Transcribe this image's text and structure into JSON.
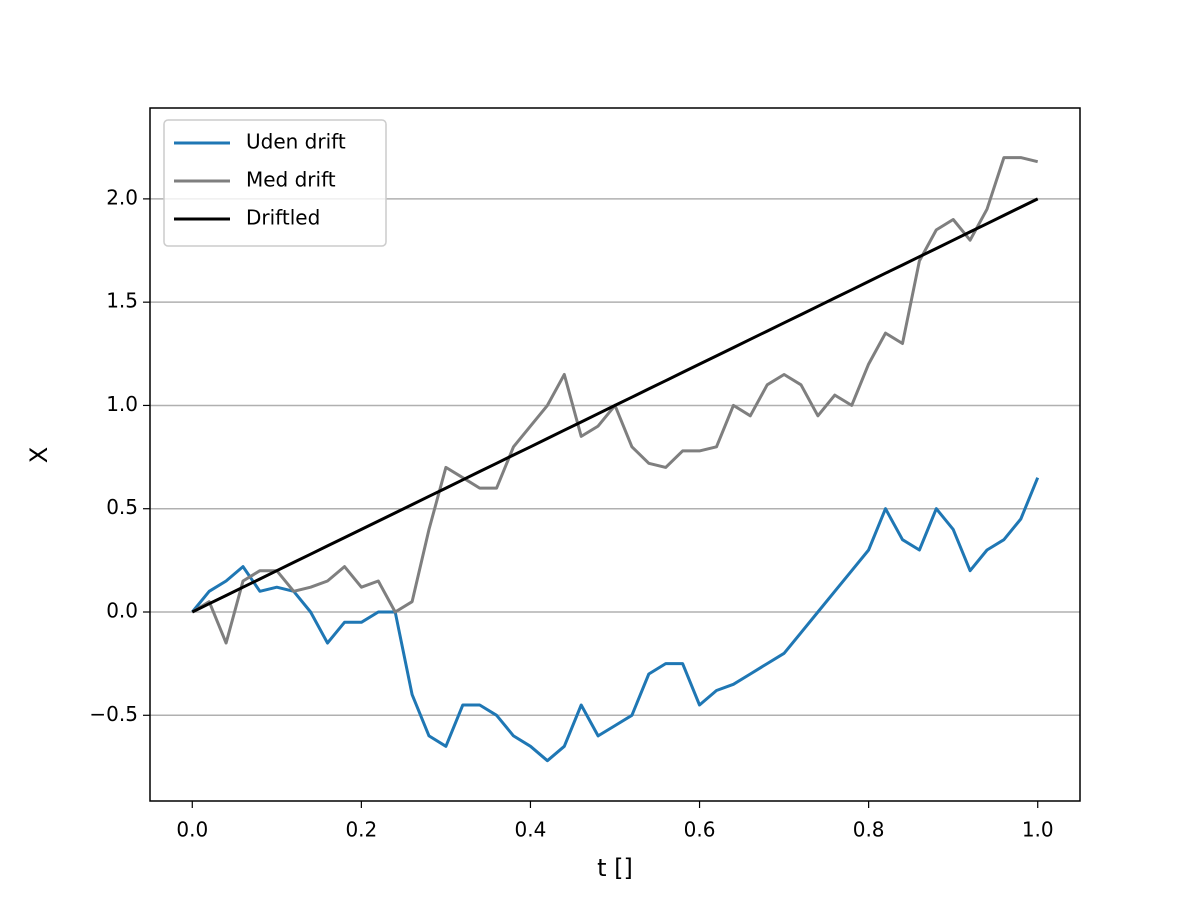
{
  "chart_data": {
    "type": "line",
    "xlabel": "t []",
    "ylabel": "X",
    "x": [
      0,
      0.02,
      0.04,
      0.06,
      0.08,
      0.1,
      0.12,
      0.14,
      0.16,
      0.18,
      0.2,
      0.22,
      0.24,
      0.26,
      0.28,
      0.3,
      0.32,
      0.34,
      0.36,
      0.38,
      0.4,
      0.42,
      0.44,
      0.46,
      0.48,
      0.5,
      0.52,
      0.54,
      0.56,
      0.58,
      0.6,
      0.62,
      0.64,
      0.66,
      0.68,
      0.7,
      0.72,
      0.74,
      0.76,
      0.78,
      0.8,
      0.82,
      0.84,
      0.86,
      0.88,
      0.9,
      0.92,
      0.94,
      0.96,
      0.98,
      1
    ],
    "series": [
      {
        "name": "Uden drift",
        "color": "#1f77b4",
        "values": [
          0,
          0.1,
          0.15,
          0.22,
          0.1,
          0.12,
          0.1,
          0,
          -0.15,
          -0.05,
          -0.05,
          0,
          0,
          -0.4,
          -0.6,
          -0.65,
          -0.45,
          -0.45,
          -0.5,
          -0.6,
          -0.65,
          -0.72,
          -0.65,
          -0.45,
          -0.6,
          -0.55,
          -0.5,
          -0.3,
          -0.25,
          -0.25,
          -0.45,
          -0.38,
          -0.35,
          -0.3,
          -0.25,
          -0.2,
          -0.1,
          0,
          0.1,
          0.2,
          0.3,
          0.5,
          0.35,
          0.3,
          0.5,
          0.4,
          0.2,
          0.3,
          0.35,
          0.45,
          0.65
        ]
      },
      {
        "name": "Med drift",
        "color": "#7f7f7f",
        "values": [
          0,
          0.05,
          -0.15,
          0.15,
          0.2,
          0.2,
          0.1,
          0.12,
          0.15,
          0.22,
          0.12,
          0.15,
          0,
          0.05,
          0.4,
          0.7,
          0.65,
          0.6,
          0.6,
          0.8,
          0.9,
          1,
          1.15,
          0.85,
          0.9,
          1,
          0.8,
          0.72,
          0.7,
          0.78,
          0.78,
          0.8,
          1,
          0.95,
          1.1,
          1.15,
          1.1,
          0.95,
          1.05,
          1,
          1.2,
          1.35,
          1.3,
          1.7,
          1.85,
          1.9,
          1.8,
          1.95,
          2.2,
          2.2,
          2.18
        ]
      },
      {
        "name": "Driftled",
        "color": "#000000",
        "values": [
          0,
          0.04,
          0.08,
          0.12,
          0.16,
          0.2,
          0.24,
          0.28,
          0.32,
          0.36,
          0.4,
          0.44,
          0.48,
          0.52,
          0.56,
          0.6,
          0.64,
          0.68,
          0.72,
          0.76,
          0.8,
          0.84,
          0.88,
          0.92,
          0.96,
          1,
          1.04,
          1.08,
          1.12,
          1.16,
          1.2,
          1.24,
          1.28,
          1.32,
          1.36,
          1.4,
          1.44,
          1.48,
          1.52,
          1.56,
          1.6,
          1.64,
          1.68,
          1.72,
          1.76,
          1.8,
          1.84,
          1.88,
          1.92,
          1.96,
          2
        ]
      }
    ],
    "xlim": [
      -0.05,
      1.05
    ],
    "ylim": [
      -0.915,
      2.44
    ],
    "xticks": [
      {
        "value": 0,
        "label": "0.0"
      },
      0.2,
      0.4,
      0.6,
      0.8,
      {
        "value": 1,
        "label": "1.0"
      }
    ],
    "yticks": [
      {
        "value": -0.5,
        "label": "−0.5"
      },
      {
        "value": 0,
        "label": "0.0"
      },
      0.5,
      {
        "value": 1,
        "label": "1.0"
      },
      1.5,
      {
        "value": 2,
        "label": "2.0"
      }
    ],
    "grid": "y",
    "legend": "upper left"
  }
}
